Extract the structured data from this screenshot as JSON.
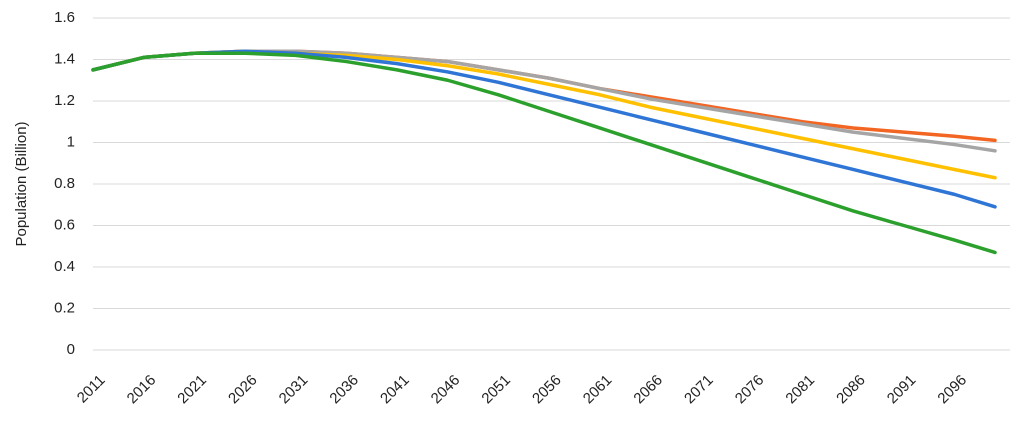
{
  "chart_data": {
    "type": "line",
    "y_label": "Population (Billion)",
    "x": [
      2011,
      2016,
      2021,
      2026,
      2031,
      2036,
      2041,
      2046,
      2051,
      2056,
      2061,
      2066,
      2071,
      2076,
      2081,
      2086,
      2091,
      2096,
      2100
    ],
    "series": [
      {
        "color": "#f26522",
        "values": [
          1.35,
          1.41,
          1.43,
          1.44,
          1.44,
          1.43,
          1.41,
          1.39,
          1.35,
          1.31,
          1.26,
          1.22,
          1.18,
          1.14,
          1.1,
          1.07,
          1.05,
          1.03,
          1.01
        ]
      },
      {
        "color": "#a5a5a5",
        "values": [
          1.35,
          1.41,
          1.43,
          1.44,
          1.44,
          1.43,
          1.41,
          1.39,
          1.35,
          1.31,
          1.26,
          1.21,
          1.17,
          1.13,
          1.09,
          1.05,
          1.02,
          0.99,
          0.96
        ]
      },
      {
        "color": "#ffc000",
        "values": [
          1.35,
          1.41,
          1.43,
          1.44,
          1.43,
          1.42,
          1.4,
          1.37,
          1.33,
          1.28,
          1.23,
          1.17,
          1.12,
          1.07,
          1.02,
          0.97,
          0.92,
          0.87,
          0.83
        ]
      },
      {
        "color": "#2f75d6",
        "values": [
          1.35,
          1.41,
          1.43,
          1.44,
          1.43,
          1.41,
          1.38,
          1.34,
          1.29,
          1.23,
          1.17,
          1.11,
          1.05,
          0.99,
          0.93,
          0.87,
          0.81,
          0.75,
          0.69
        ]
      },
      {
        "color": "#2ca02c",
        "values": [
          1.35,
          1.41,
          1.43,
          1.43,
          1.42,
          1.39,
          1.35,
          1.3,
          1.23,
          1.15,
          1.07,
          0.99,
          0.91,
          0.83,
          0.75,
          0.67,
          0.6,
          0.53,
          0.47
        ]
      }
    ],
    "xlim": [
      2011,
      2100
    ],
    "xticks": [
      2011,
      2016,
      2021,
      2026,
      2031,
      2036,
      2041,
      2046,
      2051,
      2056,
      2061,
      2066,
      2071,
      2076,
      2081,
      2086,
      2091,
      2096
    ],
    "ylim": [
      0,
      1.6
    ],
    "yticks": [
      0,
      0.2,
      0.4,
      0.6,
      0.8,
      1,
      1.2,
      1.4,
      1.6
    ],
    "grid": true
  }
}
